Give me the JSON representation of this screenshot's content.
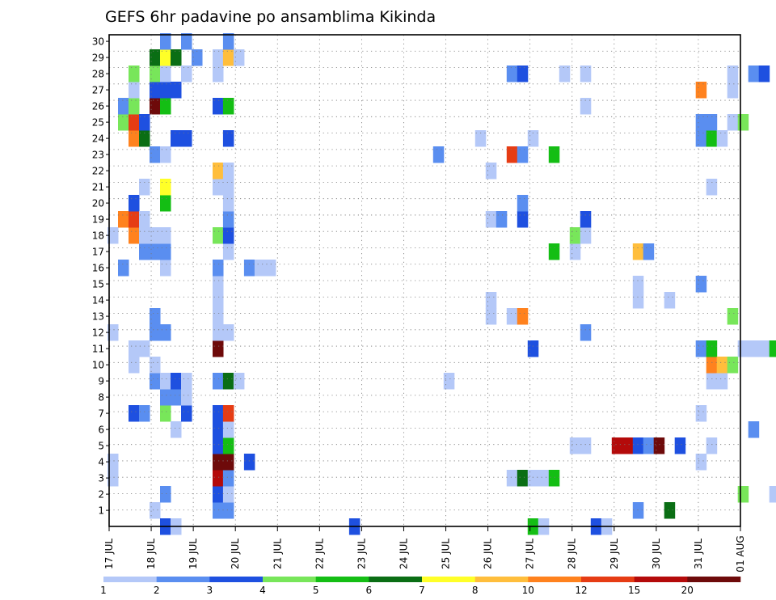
{
  "chart_data": {
    "type": "heatmap",
    "title": "GEFS 6hr padavine po ansamblima Kikinda",
    "x_tick_labels": [
      "17 JUL",
      "18 JUL",
      "19 JUL",
      "20 JUL",
      "21 JUL",
      "22 JUL",
      "23 JUL",
      "24 JUL",
      "25 JUL",
      "26 JUL",
      "27 JUL",
      "28 JUL",
      "29 JUL",
      "30 JUL",
      "31 JUL",
      "01 AUG"
    ],
    "y_tick_labels": [
      "1",
      "2",
      "3",
      "4",
      "5",
      "6",
      "7",
      "8",
      "9",
      "10",
      "11",
      "12",
      "13",
      "14",
      "15",
      "16",
      "17",
      "18",
      "19",
      "20",
      "21",
      "22",
      "23",
      "24",
      "25",
      "26",
      "27",
      "28",
      "29",
      "30"
    ],
    "xlim": [
      0,
      60
    ],
    "ylim": [
      0,
      30
    ],
    "grid": true,
    "colorbar": {
      "labels": [
        "1",
        "2",
        "3",
        "4",
        "5",
        "6",
        "7",
        "8",
        "10",
        "12",
        "15",
        "20"
      ],
      "colors": [
        "#b4c8f8",
        "#5a8ef0",
        "#1e50e0",
        "#78e65a",
        "#14be14",
        "#0a6e14",
        "#ffff28",
        "#ffbe3c",
        "#ff821e",
        "#e63c14",
        "#b40a0a",
        "#6e0a0a"
      ]
    },
    "cells": [
      [
        0,
        3,
        1
      ],
      [
        0,
        2,
        1
      ],
      [
        0,
        11,
        1
      ],
      [
        0,
        17,
        1
      ],
      [
        1,
        24,
        4
      ],
      [
        1,
        25,
        2
      ],
      [
        1,
        18,
        9
      ],
      [
        1,
        15,
        2
      ],
      [
        2,
        6,
        3
      ],
      [
        2,
        9,
        1
      ],
      [
        2,
        10,
        1
      ],
      [
        2,
        17,
        9
      ],
      [
        2,
        18,
        10
      ],
      [
        2,
        19,
        3
      ],
      [
        2,
        23,
        9
      ],
      [
        2,
        24,
        10
      ],
      [
        2,
        25,
        4
      ],
      [
        2,
        26,
        1
      ],
      [
        2,
        27,
        4
      ],
      [
        3,
        23,
        6
      ],
      [
        3,
        20,
        1
      ],
      [
        3,
        24,
        3
      ],
      [
        3,
        10,
        1
      ],
      [
        3,
        6,
        2
      ],
      [
        3,
        16,
        2
      ],
      [
        3,
        17,
        1
      ],
      [
        3,
        18,
        1
      ],
      [
        4,
        0,
        1
      ],
      [
        4,
        8,
        2
      ],
      [
        4,
        9,
        1
      ],
      [
        4,
        11,
        2
      ],
      [
        4,
        12,
        2
      ],
      [
        4,
        16,
        2
      ],
      [
        4,
        17,
        1
      ],
      [
        4,
        22,
        2
      ],
      [
        4,
        25,
        12
      ],
      [
        4,
        26,
        3
      ],
      [
        4,
        27,
        4
      ],
      [
        4,
        28,
        6
      ],
      [
        5,
        -1,
        3
      ],
      [
        5,
        1,
        2
      ],
      [
        5,
        6,
        4
      ],
      [
        5,
        7,
        2
      ],
      [
        5,
        8,
        1
      ],
      [
        5,
        11,
        2
      ],
      [
        5,
        15,
        1
      ],
      [
        5,
        16,
        2
      ],
      [
        5,
        17,
        1
      ],
      [
        5,
        19,
        5
      ],
      [
        5,
        20,
        7
      ],
      [
        5,
        22,
        1
      ],
      [
        5,
        25,
        5
      ],
      [
        5,
        26,
        3
      ],
      [
        5,
        27,
        1
      ],
      [
        5,
        28,
        7
      ],
      [
        5,
        29,
        2
      ],
      [
        6,
        -1,
        1
      ],
      [
        6,
        5,
        1
      ],
      [
        6,
        7,
        2
      ],
      [
        6,
        8,
        3
      ],
      [
        6,
        23,
        3
      ],
      [
        6,
        26,
        3
      ],
      [
        6,
        28,
        6
      ],
      [
        7,
        6,
        3
      ],
      [
        7,
        7,
        1
      ],
      [
        7,
        8,
        1
      ],
      [
        7,
        23,
        3
      ],
      [
        7,
        27,
        1
      ],
      [
        7,
        29,
        2
      ],
      [
        8,
        28,
        2
      ],
      [
        10,
        0,
        2
      ],
      [
        10,
        1,
        3
      ],
      [
        10,
        2,
        11
      ],
      [
        10,
        3,
        12
      ],
      [
        10,
        4,
        3
      ],
      [
        10,
        5,
        3
      ],
      [
        10,
        6,
        3
      ],
      [
        10,
        8,
        2
      ],
      [
        10,
        10,
        12
      ],
      [
        10,
        11,
        1
      ],
      [
        10,
        12,
        1
      ],
      [
        10,
        13,
        1
      ],
      [
        10,
        14,
        1
      ],
      [
        10,
        15,
        2
      ],
      [
        10,
        17,
        4
      ],
      [
        10,
        20,
        1
      ],
      [
        10,
        21,
        8
      ],
      [
        10,
        25,
        3
      ],
      [
        10,
        27,
        1
      ],
      [
        10,
        28,
        1
      ],
      [
        11,
        0,
        2
      ],
      [
        11,
        1,
        1
      ],
      [
        11,
        2,
        2
      ],
      [
        11,
        3,
        12
      ],
      [
        11,
        4,
        5
      ],
      [
        11,
        5,
        1
      ],
      [
        11,
        6,
        10
      ],
      [
        11,
        8,
        6
      ],
      [
        11,
        11,
        1
      ],
      [
        11,
        16,
        1
      ],
      [
        11,
        17,
        3
      ],
      [
        11,
        18,
        2
      ],
      [
        11,
        19,
        1
      ],
      [
        11,
        20,
        1
      ],
      [
        11,
        21,
        1
      ],
      [
        11,
        23,
        3
      ],
      [
        11,
        25,
        5
      ],
      [
        11,
        28,
        8
      ],
      [
        11,
        29,
        2
      ],
      [
        12,
        8,
        1
      ],
      [
        12,
        28,
        1
      ],
      [
        13,
        3,
        3
      ],
      [
        13,
        15,
        2
      ],
      [
        14,
        15,
        1
      ],
      [
        15,
        15,
        1
      ],
      [
        23,
        -1,
        3
      ],
      [
        31,
        22,
        2
      ],
      [
        32,
        8,
        1
      ],
      [
        35,
        23,
        1
      ],
      [
        36,
        12,
        1
      ],
      [
        36,
        13,
        1
      ],
      [
        36,
        18,
        1
      ],
      [
        36,
        21,
        1
      ],
      [
        37,
        18,
        2
      ],
      [
        38,
        2,
        1
      ],
      [
        38,
        12,
        1
      ],
      [
        38,
        22,
        10
      ],
      [
        38,
        27,
        2
      ],
      [
        39,
        2,
        6
      ],
      [
        39,
        12,
        9
      ],
      [
        39,
        18,
        3
      ],
      [
        39,
        19,
        2
      ],
      [
        39,
        22,
        2
      ],
      [
        39,
        27,
        3
      ],
      [
        40,
        -1,
        5
      ],
      [
        40,
        2,
        1
      ],
      [
        40,
        10,
        3
      ],
      [
        40,
        23,
        1
      ],
      [
        41,
        -1,
        1
      ],
      [
        41,
        2,
        1
      ],
      [
        42,
        2,
        5
      ],
      [
        42,
        16,
        5
      ],
      [
        42,
        22,
        5
      ],
      [
        43,
        27,
        1
      ],
      [
        44,
        4,
        1
      ],
      [
        44,
        16,
        1
      ],
      [
        44,
        17,
        4
      ],
      [
        45,
        4,
        1
      ],
      [
        45,
        11,
        2
      ],
      [
        45,
        17,
        1
      ],
      [
        45,
        18,
        3
      ],
      [
        45,
        25,
        1
      ],
      [
        45,
        27,
        1
      ],
      [
        46,
        -1,
        3
      ],
      [
        47,
        -1,
        1
      ],
      [
        48,
        4,
        11
      ],
      [
        49,
        4,
        11
      ],
      [
        50,
        0,
        2
      ],
      [
        50,
        4,
        3
      ],
      [
        50,
        13,
        1
      ],
      [
        50,
        14,
        1
      ],
      [
        50,
        16,
        8
      ],
      [
        51,
        4,
        2
      ],
      [
        51,
        16,
        2
      ],
      [
        52,
        4,
        12
      ],
      [
        53,
        0,
        6
      ],
      [
        53,
        13,
        1
      ],
      [
        54,
        4,
        3
      ],
      [
        56,
        3,
        1
      ],
      [
        56,
        6,
        1
      ],
      [
        56,
        10,
        2
      ],
      [
        56,
        14,
        2
      ],
      [
        56,
        23,
        2
      ],
      [
        56,
        24,
        2
      ],
      [
        56,
        26,
        9
      ],
      [
        57,
        4,
        1
      ],
      [
        57,
        8,
        1
      ],
      [
        57,
        9,
        9
      ],
      [
        57,
        10,
        5
      ],
      [
        57,
        20,
        1
      ],
      [
        57,
        23,
        5
      ],
      [
        57,
        24,
        2
      ],
      [
        58,
        8,
        1
      ],
      [
        58,
        9,
        8
      ],
      [
        58,
        23,
        1
      ],
      [
        59,
        9,
        4
      ],
      [
        59,
        12,
        4
      ],
      [
        59,
        24,
        1
      ],
      [
        59,
        26,
        1
      ],
      [
        59,
        27,
        1
      ],
      [
        60,
        1,
        4
      ],
      [
        60,
        10,
        1
      ],
      [
        60,
        24,
        4
      ],
      [
        61,
        5,
        2
      ],
      [
        61,
        10,
        1
      ],
      [
        61,
        27,
        2
      ],
      [
        62,
        10,
        1
      ],
      [
        62,
        27,
        3
      ],
      [
        63,
        10,
        5
      ],
      [
        63,
        1,
        1
      ],
      [
        64,
        10,
        4
      ],
      [
        64,
        1,
        1
      ],
      [
        65,
        5,
        5
      ],
      [
        65,
        3,
        9
      ],
      [
        65,
        15,
        2
      ]
    ]
  }
}
